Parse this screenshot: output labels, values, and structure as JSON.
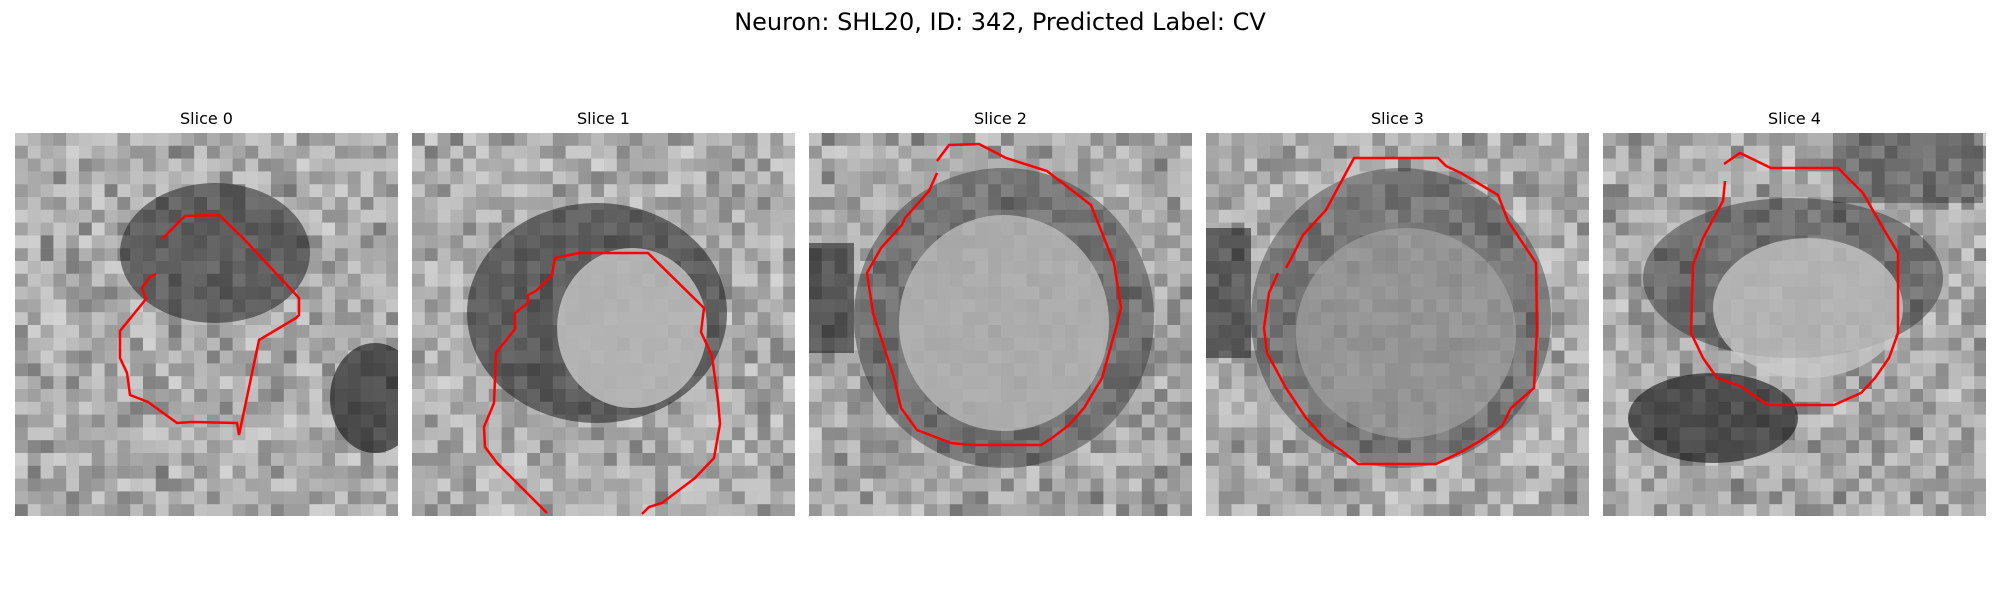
{
  "figure": {
    "title": "Neuron: SHL20, ID: 342, Predicted Label: CV",
    "contour_color": "#ff0000"
  },
  "slices": [
    {
      "title": "Slice 0"
    },
    {
      "title": "Slice 1"
    },
    {
      "title": "Slice 2"
    },
    {
      "title": "Slice 3"
    },
    {
      "title": "Slice 4"
    }
  ]
}
